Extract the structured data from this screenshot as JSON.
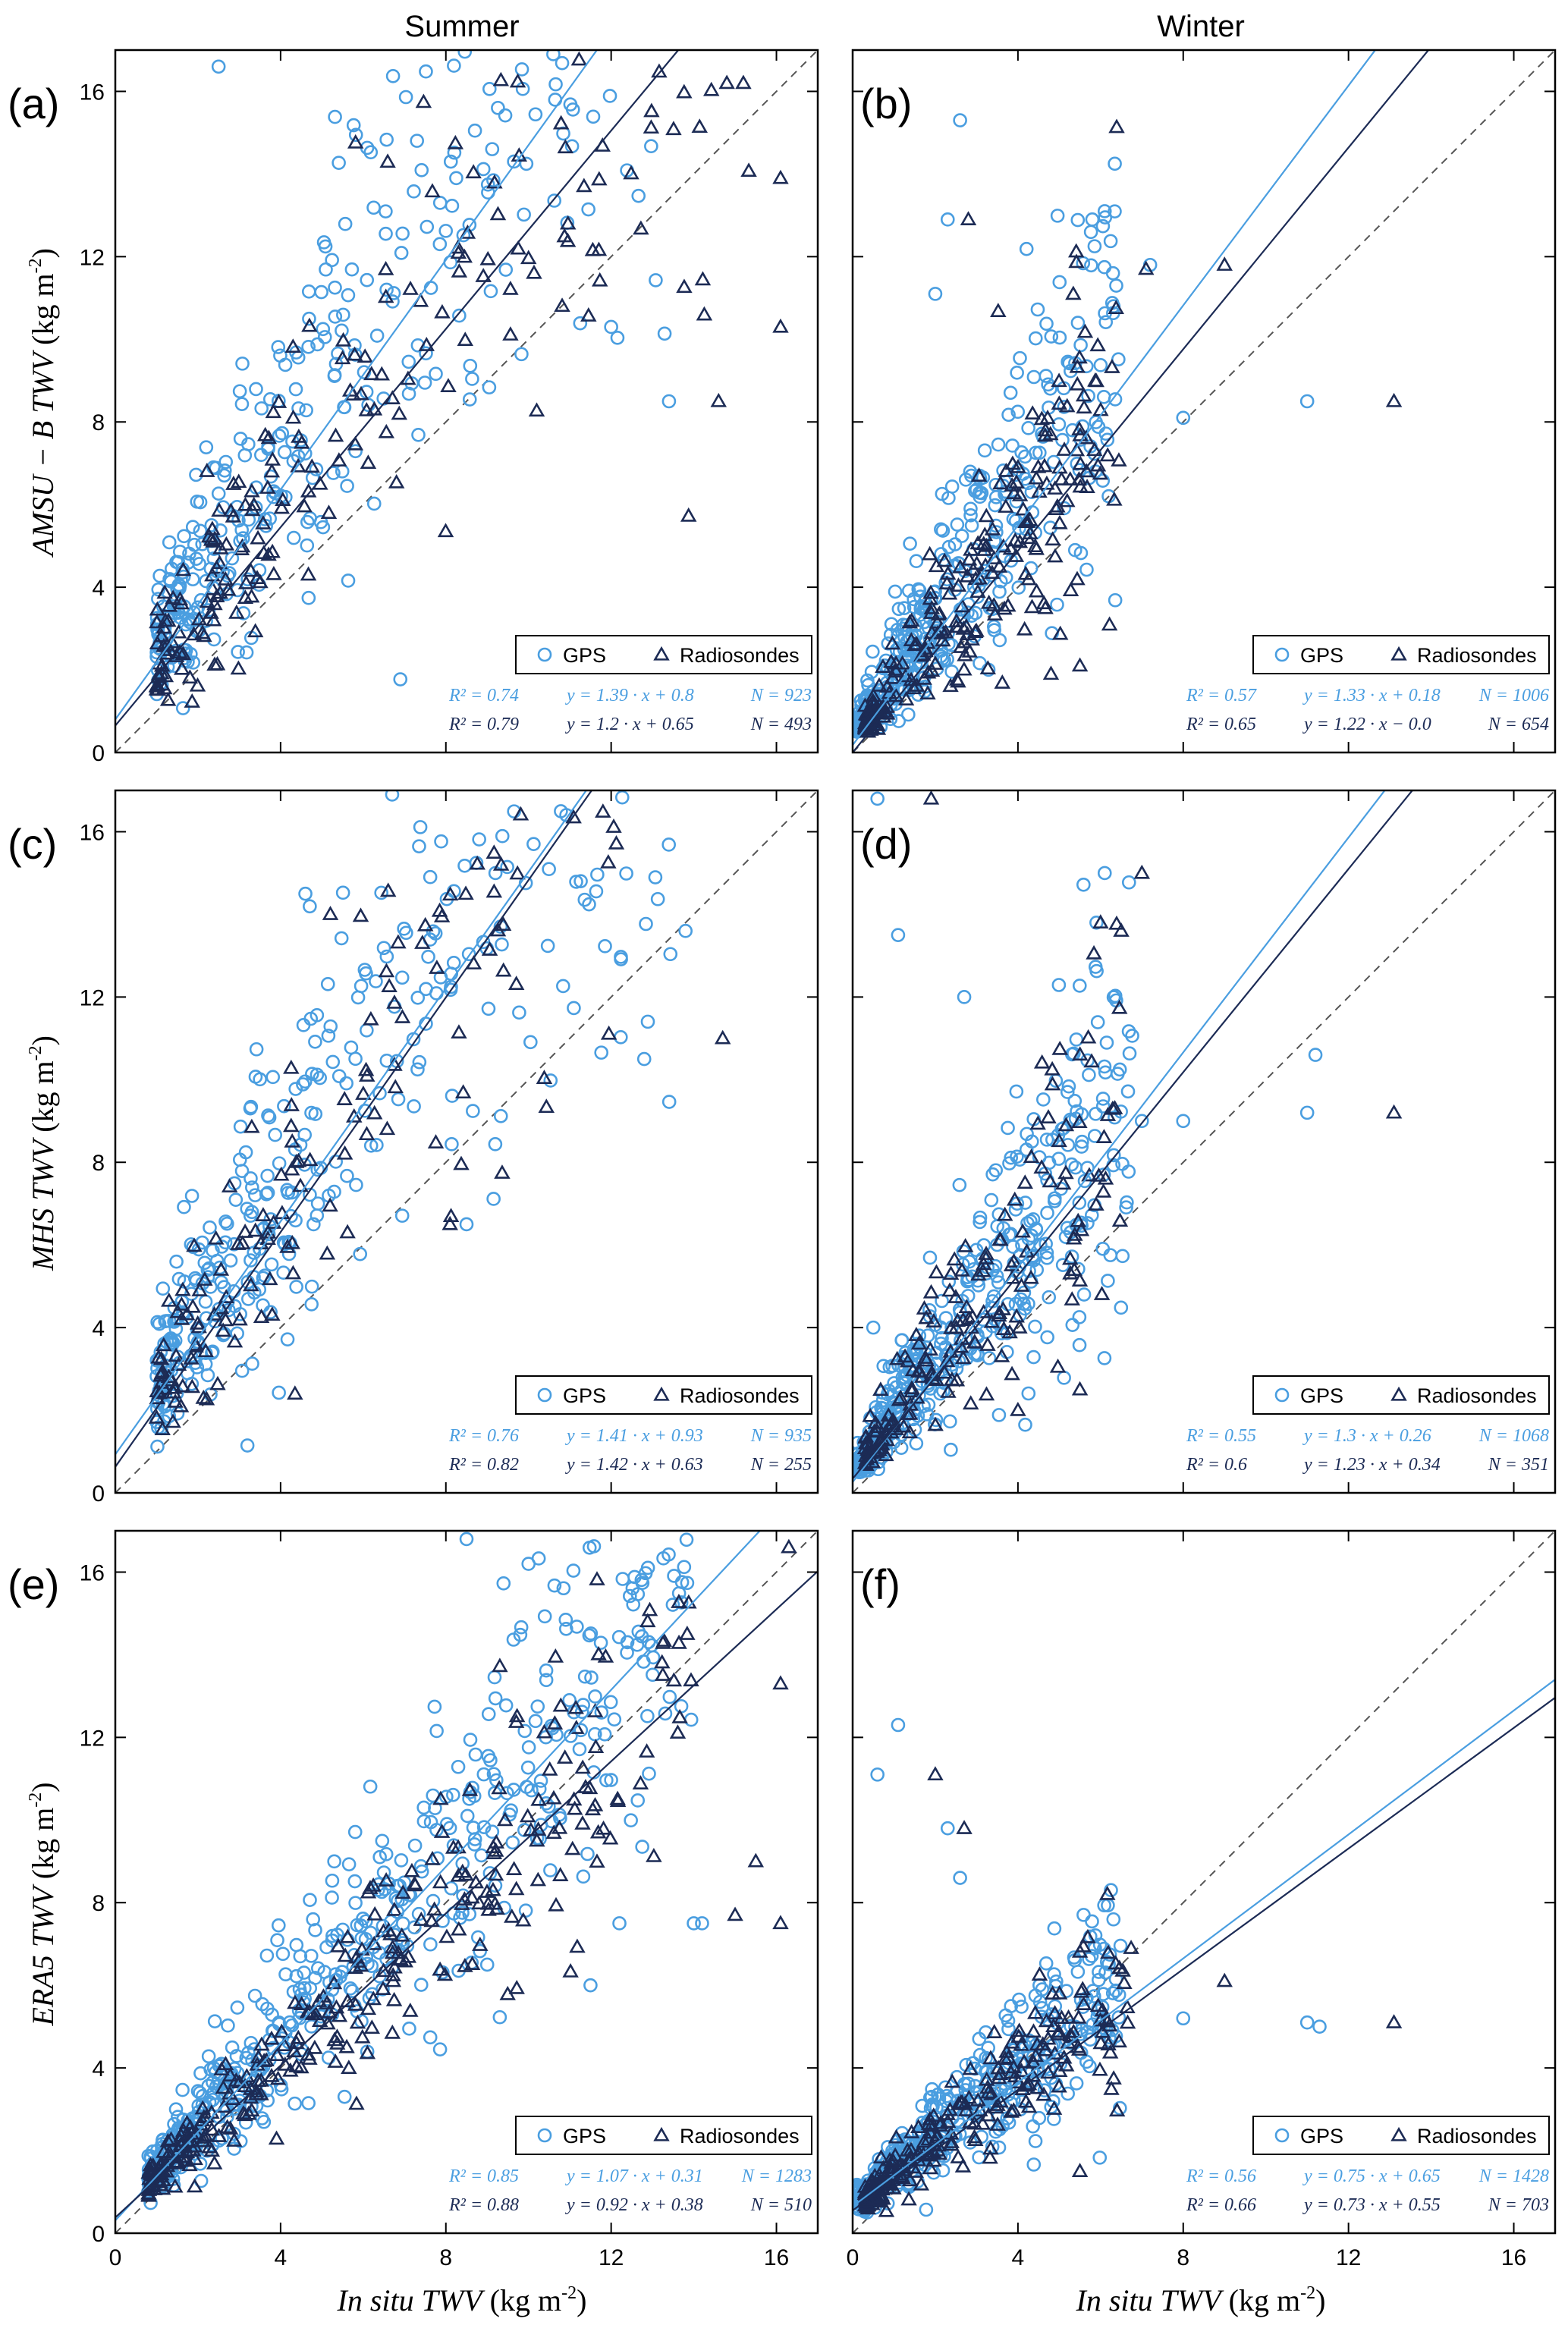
{
  "colors": {
    "gps": "#4a9ee0",
    "radiosondes": "#1c2b55",
    "axis": "#000000",
    "identity": "#555555"
  },
  "columns": [
    "Summer",
    "Winter"
  ],
  "row_ylabels": [
    {
      "name": "AMSU − B TWV",
      "unit": "(kg m",
      "sup": "-2",
      "close": ")"
    },
    {
      "name": "MHS TWV",
      "unit": "(kg m",
      "sup": "-2",
      "close": ")"
    },
    {
      "name": "ERA5 TWV",
      "unit": "(kg m",
      "sup": "-2",
      "close": ")"
    }
  ],
  "xlabel": {
    "name": "In situ TWV",
    "unit": "(kg m",
    "sup": "-2",
    "close": ")"
  },
  "chart_data": [
    {
      "type": "scatter",
      "panel": "(a)",
      "season": "Summer",
      "xlim": [
        0,
        17
      ],
      "ylim": [
        0,
        17
      ],
      "xticks": [
        0,
        4,
        8,
        12,
        16
      ],
      "yticks": [
        0,
        4,
        8,
        12,
        16
      ],
      "legend": [
        "GPS",
        "Radiosondes"
      ],
      "legend_loc": "lower right",
      "series": [
        {
          "name": "GPS",
          "marker": "circle",
          "slope": 1.39,
          "intercept": 0.8,
          "r2_label": "R² = 0.74",
          "fit_label": "y = 1.39 · x + 0.8",
          "n_label": "N = 923",
          "cloud": {
            "seed": 11,
            "n": 360,
            "xmin": 1.0,
            "xmax": 13.5,
            "slope": 1.39,
            "intercept": 0.8,
            "spread": 0.3,
            "skew": 0.55
          },
          "points": [
            [
              13.4,
              8.5
            ],
            [
              12.0,
              10.3
            ],
            [
              2.5,
              16.6
            ],
            [
              10.6,
              16.9
            ]
          ]
        },
        {
          "name": "Radiosondes",
          "marker": "triangle",
          "slope": 1.2,
          "intercept": 0.65,
          "r2_label": "R² = 0.79",
          "fit_label": "y = 1.2 · x + 0.65",
          "n_label": "N = 493",
          "cloud": {
            "seed": 12,
            "n": 230,
            "xmin": 1.0,
            "xmax": 15.5,
            "slope": 1.2,
            "intercept": 0.65,
            "spread": 0.28,
            "skew": 0.45
          },
          "points": [
            [
              14.6,
              8.5
            ],
            [
              16.1,
              10.3
            ],
            [
              16.1,
              13.9
            ],
            [
              14.8,
              16.2
            ],
            [
              15.2,
              16.2
            ]
          ]
        }
      ]
    },
    {
      "type": "scatter",
      "panel": "(b)",
      "season": "Winter",
      "xlim": [
        0,
        17
      ],
      "ylim": [
        0,
        17
      ],
      "xticks": [
        0,
        4,
        8,
        12,
        16
      ],
      "yticks": [
        0,
        4,
        8,
        12,
        16
      ],
      "legend": [
        "GPS",
        "Radiosondes"
      ],
      "legend_loc": "lower right",
      "series": [
        {
          "name": "GPS",
          "marker": "circle",
          "slope": 1.33,
          "intercept": 0.18,
          "r2_label": "R² = 0.57",
          "fit_label": "y = 1.33 · x + 0.18",
          "n_label": "N = 1006",
          "cloud": {
            "seed": 21,
            "n": 400,
            "xmin": 0.1,
            "xmax": 6.5,
            "slope": 1.33,
            "intercept": 0.18,
            "spread": 0.32,
            "skew": 0.6
          },
          "points": [
            [
              2.6,
              15.3
            ],
            [
              2.3,
              12.9
            ],
            [
              2.0,
              11.1
            ],
            [
              5.8,
              12.9
            ],
            [
              6.1,
              13.1
            ],
            [
              7.2,
              11.8
            ],
            [
              6.3,
              11.6
            ],
            [
              8.0,
              8.1
            ],
            [
              11.0,
              8.5
            ]
          ]
        },
        {
          "name": "Radiosondes",
          "marker": "triangle",
          "slope": 1.22,
          "intercept": 0.0,
          "r2_label": "R² = 0.65",
          "fit_label": "y = 1.22 · x − 0.0",
          "n_label": "N = 654",
          "cloud": {
            "seed": 22,
            "n": 240,
            "xmin": 0.3,
            "xmax": 6.5,
            "slope": 1.22,
            "intercept": 0.0,
            "spread": 0.3,
            "skew": 0.5
          },
          "points": [
            [
              2.8,
              12.9
            ],
            [
              7.1,
              11.7
            ],
            [
              9.0,
              11.8
            ],
            [
              13.1,
              8.5
            ],
            [
              5.5,
              2.1
            ],
            [
              4.8,
              1.9
            ]
          ]
        }
      ]
    },
    {
      "type": "scatter",
      "panel": "(c)",
      "season": "Summer",
      "xlim": [
        0,
        17
      ],
      "ylim": [
        0,
        17
      ],
      "xticks": [
        0,
        4,
        8,
        12,
        16
      ],
      "yticks": [
        0,
        4,
        8,
        12,
        16
      ],
      "legend": [
        "GPS",
        "Radiosondes"
      ],
      "legend_loc": "lower right",
      "series": [
        {
          "name": "GPS",
          "marker": "circle",
          "slope": 1.41,
          "intercept": 0.93,
          "r2_label": "R² = 0.76",
          "fit_label": "y = 1.41 · x + 0.93",
          "n_label": "N = 935",
          "cloud": {
            "seed": 31,
            "n": 380,
            "xmin": 1.0,
            "xmax": 13.5,
            "slope": 1.41,
            "intercept": 0.93,
            "spread": 0.3,
            "skew": 0.55
          },
          "points": [
            [
              8.5,
              6.5
            ],
            [
              12.8,
              10.5
            ],
            [
              13.8,
              13.6
            ],
            [
              4.6,
              14.5
            ],
            [
              6.7,
              16.9
            ],
            [
              9.2,
              15.0
            ]
          ]
        },
        {
          "name": "Radiosondes",
          "marker": "triangle",
          "slope": 1.42,
          "intercept": 0.63,
          "r2_label": "R² = 0.82",
          "fit_label": "y = 1.42 · x + 0.63",
          "n_label": "N = 255",
          "cloud": {
            "seed": 32,
            "n": 150,
            "xmin": 1.0,
            "xmax": 12.5,
            "slope": 1.42,
            "intercept": 0.63,
            "spread": 0.25,
            "skew": 0.45
          },
          "points": [
            [
              14.7,
              11.0
            ],
            [
              8.1,
              6.5
            ]
          ]
        }
      ]
    },
    {
      "type": "scatter",
      "panel": "(d)",
      "season": "Winter",
      "xlim": [
        0,
        17
      ],
      "ylim": [
        0,
        17
      ],
      "xticks": [
        0,
        4,
        8,
        12,
        16
      ],
      "yticks": [
        0,
        4,
        8,
        12,
        16
      ],
      "legend": [
        "GPS",
        "Radiosondes"
      ],
      "legend_loc": "lower right",
      "series": [
        {
          "name": "GPS",
          "marker": "circle",
          "slope": 1.3,
          "intercept": 0.26,
          "r2_label": "R² = 0.55",
          "fit_label": "y = 1.3 · x + 0.26",
          "n_label": "N = 1068",
          "cloud": {
            "seed": 41,
            "n": 420,
            "xmin": 0.1,
            "xmax": 6.8,
            "slope": 1.3,
            "intercept": 0.26,
            "spread": 0.3,
            "skew": 0.55
          },
          "points": [
            [
              0.6,
              16.8
            ],
            [
              1.1,
              13.5
            ],
            [
              2.7,
              12.0
            ],
            [
              6.1,
              15.0
            ],
            [
              5.9,
              13.8
            ],
            [
              7.0,
              9.0
            ],
            [
              8.0,
              9.0
            ],
            [
              11.0,
              9.2
            ],
            [
              11.2,
              10.6
            ],
            [
              0.5,
              4.0
            ]
          ]
        },
        {
          "name": "Radiosondes",
          "marker": "triangle",
          "slope": 1.23,
          "intercept": 0.34,
          "r2_label": "R² = 0.6",
          "fit_label": "y = 1.23 · x + 0.34",
          "n_label": "N = 351",
          "cloud": {
            "seed": 42,
            "n": 170,
            "xmin": 0.3,
            "xmax": 6.5,
            "slope": 1.23,
            "intercept": 0.34,
            "spread": 0.28,
            "skew": 0.45
          },
          "points": [
            [
              1.9,
              16.8
            ],
            [
              6.0,
              13.8
            ],
            [
              7.0,
              15.0
            ],
            [
              6.5,
              13.6
            ],
            [
              13.1,
              9.2
            ],
            [
              5.5,
              2.5
            ],
            [
              4.0,
              2.0
            ]
          ]
        }
      ]
    },
    {
      "type": "scatter",
      "panel": "(e)",
      "season": "Summer",
      "xlim": [
        0,
        17
      ],
      "ylim": [
        0,
        17
      ],
      "xticks": [
        0,
        4,
        8,
        12,
        16
      ],
      "yticks": [
        0,
        4,
        8,
        12,
        16
      ],
      "legend": [
        "GPS",
        "Radiosondes"
      ],
      "legend_loc": "lower right",
      "series": [
        {
          "name": "GPS",
          "marker": "circle",
          "slope": 1.07,
          "intercept": 0.31,
          "r2_label": "R² = 0.85",
          "fit_label": "y = 1.07 · x + 0.31",
          "n_label": "N = 1283",
          "cloud": {
            "seed": 51,
            "n": 520,
            "xmin": 0.8,
            "xmax": 14.0,
            "slope": 1.07,
            "intercept": 0.31,
            "spread": 0.2,
            "skew": 0.2
          },
          "points": [
            [
              8.5,
              16.8
            ],
            [
              10.0,
              16.2
            ],
            [
              14.2,
              7.5
            ],
            [
              12.2,
              7.5
            ],
            [
              11.5,
              6.0
            ],
            [
              14.0,
              7.5
            ],
            [
              9.0,
              6.5
            ]
          ]
        },
        {
          "name": "Radiosondes",
          "marker": "triangle",
          "slope": 0.92,
          "intercept": 0.38,
          "r2_label": "R² = 0.88",
          "fit_label": "y = 0.92 · x + 0.38",
          "n_label": "N = 510",
          "cloud": {
            "seed": 52,
            "n": 300,
            "xmin": 0.8,
            "xmax": 14.0,
            "slope": 0.92,
            "intercept": 0.38,
            "spread": 0.17,
            "skew": 0.1
          },
          "points": [
            [
              16.1,
              7.5
            ],
            [
              15.5,
              9.0
            ],
            [
              16.1,
              13.3
            ],
            [
              16.3,
              16.6
            ],
            [
              15.0,
              7.7
            ]
          ]
        }
      ]
    },
    {
      "type": "scatter",
      "panel": "(f)",
      "season": "Winter",
      "xlim": [
        0,
        17
      ],
      "ylim": [
        0,
        17
      ],
      "xticks": [
        0,
        4,
        8,
        12,
        16
      ],
      "yticks": [
        0,
        4,
        8,
        12,
        16
      ],
      "legend": [
        "GPS",
        "Radiosondes"
      ],
      "legend_loc": "lower right",
      "series": [
        {
          "name": "GPS",
          "marker": "circle",
          "slope": 0.75,
          "intercept": 0.65,
          "r2_label": "R² = 0.56",
          "fit_label": "y = 0.75 · x + 0.65",
          "n_label": "N = 1428",
          "cloud": {
            "seed": 61,
            "n": 480,
            "xmin": 0.1,
            "xmax": 6.5,
            "slope": 0.75,
            "intercept": 0.65,
            "spread": 0.22,
            "skew": 0.25
          },
          "points": [
            [
              1.1,
              12.3
            ],
            [
              0.6,
              11.1
            ],
            [
              2.3,
              9.8
            ],
            [
              2.6,
              8.6
            ],
            [
              8.0,
              5.2
            ],
            [
              11.0,
              5.1
            ],
            [
              11.3,
              5.0
            ]
          ]
        },
        {
          "name": "Radiosondes",
          "marker": "triangle",
          "slope": 0.73,
          "intercept": 0.55,
          "r2_label": "R² = 0.66",
          "fit_label": "y = 0.73 · x + 0.55",
          "n_label": "N = 703",
          "cloud": {
            "seed": 62,
            "n": 250,
            "xmin": 0.3,
            "xmax": 6.8,
            "slope": 0.73,
            "intercept": 0.55,
            "spread": 0.2,
            "skew": 0.2
          },
          "points": [
            [
              2.0,
              11.1
            ],
            [
              2.7,
              9.8
            ],
            [
              9.0,
              6.1
            ],
            [
              13.1,
              5.1
            ],
            [
              5.5,
              1.5
            ]
          ]
        }
      ]
    }
  ]
}
